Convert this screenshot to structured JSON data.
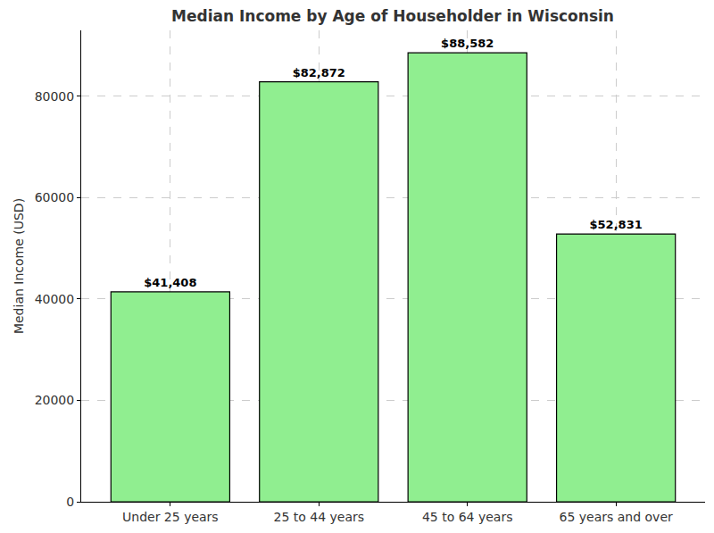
{
  "chart_data": {
    "type": "bar",
    "title": "Median Income by Age of Householder in Wisconsin",
    "y_label": "Median Income (USD)",
    "categories": [
      "Under 25 years",
      "25 to 44 years",
      "45 to 64 years",
      "65 years and over"
    ],
    "values": [
      41408,
      82872,
      88582,
      52831
    ],
    "value_labels": [
      "$41,408",
      "$82,872",
      "$88,582",
      "$52,831"
    ],
    "data_labels": true,
    "color": "#90ee90",
    "ylim": [
      0,
      93011
    ],
    "yticks": [
      0,
      20000,
      40000,
      60000,
      80000
    ],
    "grid": true
  }
}
